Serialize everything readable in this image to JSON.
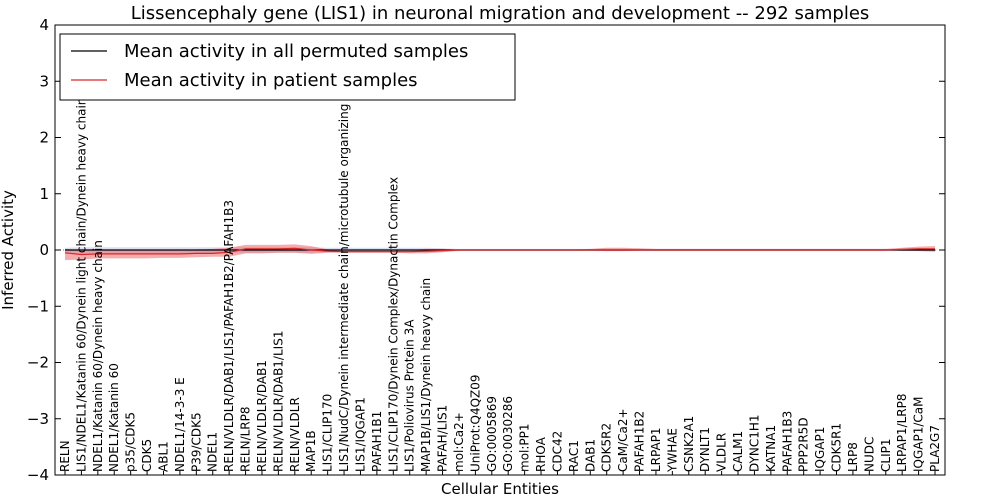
{
  "chart_data": {
    "type": "line",
    "title": "Lissencephaly gene (LIS1) in neuronal migration and development -- 292 samples",
    "xlabel": "Cellular Entities",
    "ylabel": "Inferred Activity",
    "ylim": [
      -4,
      4
    ],
    "yticks": [
      -4,
      -3,
      -2,
      -1,
      0,
      1,
      2,
      3,
      4
    ],
    "legend_position": "top-left",
    "categories": [
      "RELN",
      "LIS1/NDEL1/Katanin 60/Dynein light chain/Dynein heavy chain",
      "NDEL1/Katanin 60/Dynein heavy chain",
      "NDEL1/Katanin 60",
      "p35/CDK5",
      "CDK5",
      "ABL1",
      "NDEL1/14-3-3 E",
      "P39/CDK5",
      "NDEL1",
      "RELN/VLDLR/DAB1/LIS1/PAFAH1B2/PAFAH1B3",
      "RELN/LRP8",
      "RELN/VLDLR/DAB1",
      "RELN/VLDLR/DAB1/LIS1",
      "RELN/VLDLR",
      "MAP1B",
      "LIS1/CLIP170",
      "LIS1/NudC/Dynein intermediate chain/microtubule organizing center",
      "LIS1/IQGAP1",
      "PAFAH1B1",
      "LIS1/CLIP170/Dynein Complex/Dynactin Complex",
      "LIS1/Poliovirus Protein 3A",
      "MAP1B/LIS1/Dynein heavy chain",
      "PAFAH/LIS1",
      "mol:Ca2+",
      "UniProt:Q4QZ09",
      "GO:0005869",
      "GO:0030286",
      "mol:PP1",
      "RHOA",
      "CDC42",
      "RAC1",
      "DAB1",
      "CDK5R2",
      "CaM/Ca2+",
      "PAFAH1B2",
      "LRPAP1",
      "YWHAE",
      "CSNK2A1",
      "DYNLT1",
      "VLDLR",
      "CALM1",
      "DYNC1H1",
      "KATNA1",
      "PAFAH1B3",
      "PPP2R5D",
      "IQGAP1",
      "CDK5R1",
      "LRP8",
      "NUDC",
      "CLIP1",
      "LRPAP1/LRP8",
      "IQGAP1/CaM",
      "PLA2G7"
    ],
    "series": [
      {
        "name": "Mean activity in all permuted samples",
        "color": "#000000",
        "values": [
          0,
          0,
          0,
          0,
          0,
          0,
          0,
          0,
          0,
          0,
          0,
          0,
          0,
          0,
          0,
          0,
          0,
          0,
          0,
          0,
          0,
          0,
          0,
          0,
          0,
          0,
          0,
          0,
          0,
          0,
          0,
          0,
          0,
          0,
          0,
          0,
          0,
          0,
          0,
          0,
          0,
          0,
          0,
          0,
          0,
          0,
          0,
          0,
          0,
          0,
          0,
          0,
          0,
          0
        ],
        "band_upper": [
          0.04,
          0.05,
          0.05,
          0.05,
          0.05,
          0.05,
          0.05,
          0.05,
          0.05,
          0.05,
          0.05,
          0.05,
          0.05,
          0.05,
          0.05,
          0.05,
          0.04,
          0.04,
          0.04,
          0.04,
          0.04,
          0.04,
          0.04,
          0.03,
          0.02,
          0.02,
          0.02,
          0.02,
          0.02,
          0.02,
          0.02,
          0.02,
          0.02,
          0.02,
          0.02,
          0.02,
          0.02,
          0.02,
          0.02,
          0.02,
          0.02,
          0.02,
          0.02,
          0.02,
          0.02,
          0.02,
          0.02,
          0.02,
          0.02,
          0.02,
          0.02,
          0.02,
          0.02,
          0.02
        ],
        "band_lower": [
          -0.04,
          -0.05,
          -0.05,
          -0.05,
          -0.05,
          -0.05,
          -0.05,
          -0.05,
          -0.05,
          -0.05,
          -0.05,
          -0.05,
          -0.05,
          -0.05,
          -0.05,
          -0.05,
          -0.04,
          -0.04,
          -0.04,
          -0.04,
          -0.04,
          -0.04,
          -0.04,
          -0.03,
          -0.02,
          -0.02,
          -0.02,
          -0.02,
          -0.02,
          -0.02,
          -0.02,
          -0.02,
          -0.02,
          -0.02,
          -0.02,
          -0.02,
          -0.02,
          -0.02,
          -0.02,
          -0.02,
          -0.02,
          -0.02,
          -0.02,
          -0.02,
          -0.02,
          -0.02,
          -0.02,
          -0.02,
          -0.02,
          -0.02,
          -0.02,
          -0.02,
          -0.02,
          -0.02
        ]
      },
      {
        "name": "Mean activity in patient samples",
        "color": "#d62728",
        "values": [
          -0.05,
          -0.08,
          -0.07,
          -0.07,
          -0.07,
          -0.07,
          -0.07,
          -0.07,
          -0.06,
          -0.06,
          -0.04,
          0.02,
          0.02,
          0.02,
          0.03,
          0.0,
          -0.02,
          -0.03,
          -0.03,
          -0.03,
          -0.03,
          -0.03,
          -0.02,
          -0.01,
          0,
          0,
          0,
          0,
          0,
          0,
          0,
          0,
          0,
          0,
          0,
          0,
          0,
          0,
          0,
          0,
          0,
          0,
          0,
          0,
          0,
          0,
          0,
          0,
          0,
          0,
          0,
          0.01,
          0.02,
          0.02
        ],
        "band_upper": [
          0.02,
          0.0,
          0.0,
          0.0,
          0.0,
          0.0,
          0.0,
          0.0,
          0.01,
          0.02,
          0.04,
          0.09,
          0.09,
          0.09,
          0.1,
          0.07,
          0.01,
          -0.01,
          -0.01,
          -0.01,
          -0.01,
          0.0,
          0.02,
          0.02,
          0.01,
          0.01,
          0.01,
          0.01,
          0.01,
          0.01,
          0.01,
          0.01,
          0.02,
          0.04,
          0.04,
          0.03,
          0.02,
          0.02,
          0.02,
          0.02,
          0.02,
          0.02,
          0.02,
          0.02,
          0.02,
          0.02,
          0.02,
          0.02,
          0.02,
          0.02,
          0.02,
          0.04,
          0.06,
          0.07
        ],
        "band_lower": [
          -0.18,
          -0.17,
          -0.15,
          -0.15,
          -0.15,
          -0.15,
          -0.14,
          -0.14,
          -0.13,
          -0.12,
          -0.12,
          -0.06,
          -0.06,
          -0.05,
          -0.05,
          -0.07,
          -0.05,
          -0.05,
          -0.05,
          -0.05,
          -0.05,
          -0.06,
          -0.06,
          -0.04,
          -0.01,
          -0.01,
          -0.01,
          -0.01,
          -0.01,
          -0.01,
          -0.01,
          -0.01,
          -0.01,
          -0.02,
          -0.02,
          -0.01,
          -0.01,
          -0.01,
          -0.01,
          -0.01,
          -0.01,
          -0.01,
          -0.01,
          -0.01,
          -0.01,
          -0.01,
          -0.01,
          -0.01,
          -0.01,
          -0.01,
          -0.01,
          -0.01,
          -0.02,
          -0.03
        ]
      }
    ]
  }
}
